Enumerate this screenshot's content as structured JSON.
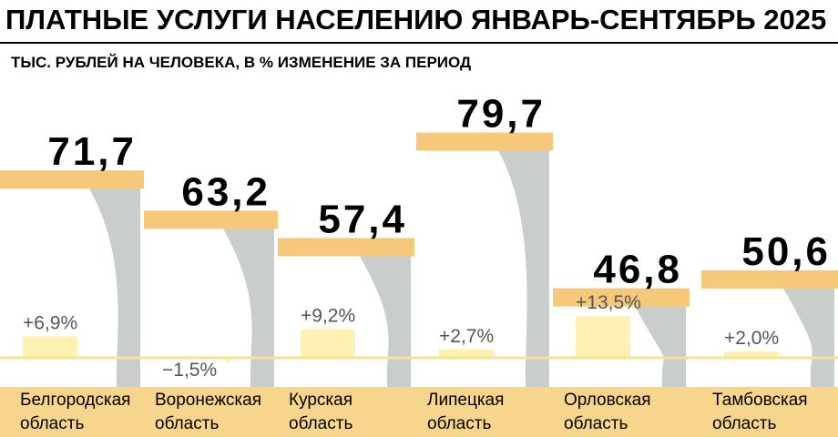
{
  "chart_data": {
    "type": "bar",
    "title": "ПЛАТНЫЕ УСЛУГИ НАСЕЛЕНИЮ ЯНВАРЬ-СЕНТЯБРЬ 2025",
    "subtitle": "ТЫС. РУБЛЕЙ НА ЧЕЛОВЕКА, В % ИЗМЕНЕНИЕ ЗА ПЕРИОД",
    "categories": [
      "Белгородская область",
      "Воронежская область",
      "Курская область",
      "Липецкая область",
      "Орловская область",
      "Тамбовская область"
    ],
    "values": [
      71.7,
      63.2,
      57.4,
      79.7,
      46.8,
      50.6
    ],
    "value_labels": [
      "71,7",
      "63,2",
      "57,4",
      "79,7",
      "46,8",
      "50,6"
    ],
    "change_values": [
      6.9,
      -1.5,
      9.2,
      2.7,
      13.5,
      2.0
    ],
    "change_labels": [
      "+6,9%",
      "−1,5%",
      "+9,2%",
      "+2,7%",
      "+13,5%",
      "+2,0%"
    ],
    "color": "#f6c87a",
    "shadow_color": "#c9cecd",
    "change_color": "#fdf2b3",
    "band_color": "#f8d58c"
  }
}
